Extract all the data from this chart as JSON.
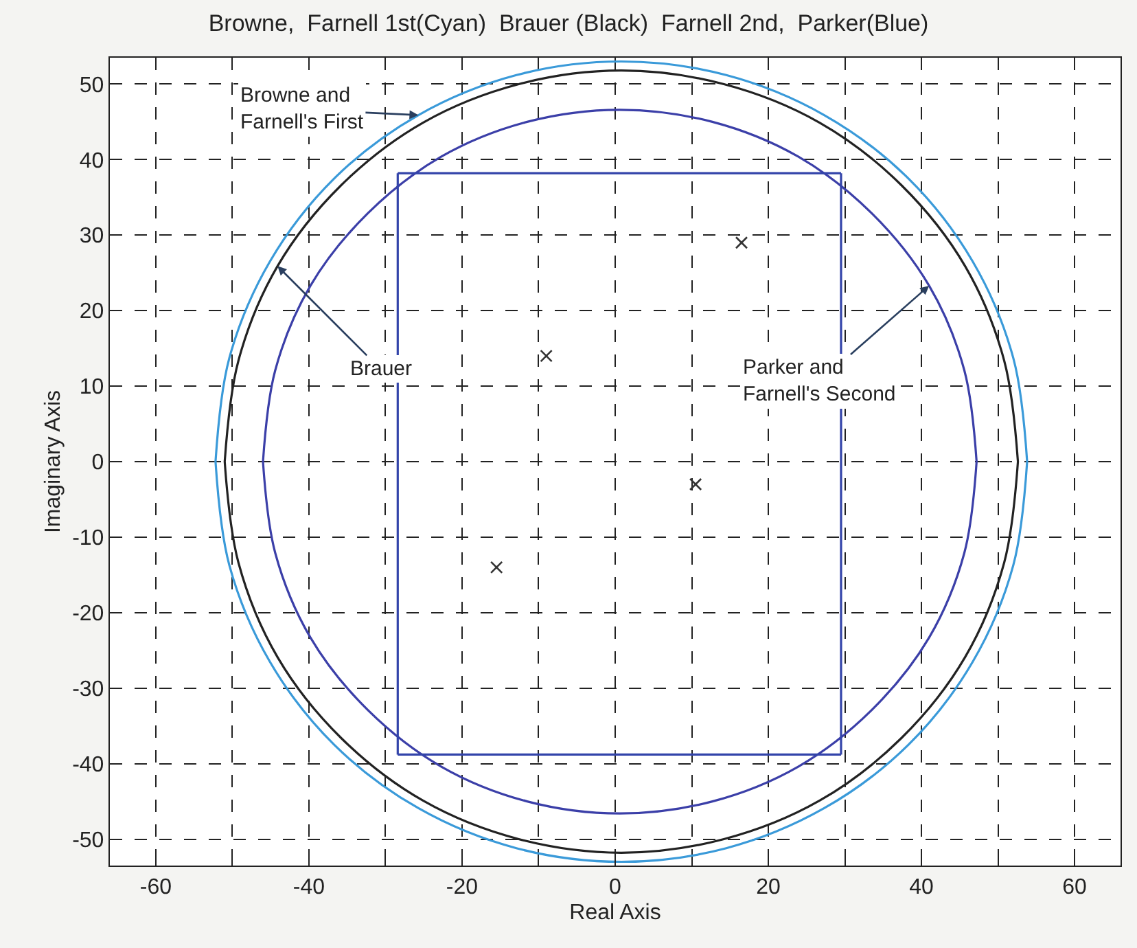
{
  "chart_data": {
    "type": "line",
    "title": "Browne,  Farnell 1st(Cyan)  Brauer (Black)  Farnell 2nd,  Parker(Blue)",
    "xlabel": "Real Axis",
    "ylabel": "Imaginary Axis",
    "xlim": [
      -66,
      66
    ],
    "ylim": [
      -53.5,
      53.5
    ],
    "xticks": [
      -60,
      {
        "value": -50,
        "label": null
      },
      -40,
      {
        "value": -30,
        "label": null
      },
      -20,
      {
        "value": -10,
        "label": null
      },
      0,
      {
        "value": 10,
        "label": null
      },
      20,
      {
        "value": 30,
        "label": null
      },
      40,
      {
        "value": 50,
        "label": null
      },
      60
    ],
    "yticks": [
      -50,
      -40,
      -30,
      -20,
      -10,
      0,
      10,
      20,
      30,
      40,
      50
    ],
    "grid": true,
    "line_style": "solid",
    "marker": "none",
    "series": [
      {
        "color": "#3a9ad9",
        "x": [
          -52.2,
          -50.4,
          -45.1,
          -36.7,
          -25.7,
          -12.9,
          0.8,
          14.5,
          27.3,
          38.3,
          46.7,
          52.0,
          53.8,
          null,
          -52.2,
          -50.4,
          -45.1,
          -36.7,
          -25.7,
          -12.9,
          0.8,
          14.5,
          27.3,
          38.3,
          46.7,
          52.0,
          53.8
        ],
        "values": [
          0,
          13.7,
          26.5,
          37.5,
          45.9,
          51.2,
          53,
          51.2,
          45.9,
          37.5,
          26.5,
          13.7,
          0,
          null,
          0,
          -13.7,
          -26.5,
          -37.5,
          -45.9,
          -51.2,
          -53,
          -51.2,
          -45.9,
          -37.5,
          -26.5,
          -13.7,
          0
        ]
      },
      {
        "color": "#222222",
        "x": [
          -51.0,
          -49.2,
          -44.1,
          -35.8,
          -25.1,
          -12.6,
          0.8,
          14.2,
          26.7,
          37.4,
          45.7,
          50.8,
          52.6,
          null,
          -51.0,
          -49.2,
          -44.1,
          -35.8,
          -25.1,
          -12.6,
          0.8,
          14.2,
          26.7,
          37.4,
          45.7,
          50.8,
          52.6
        ],
        "values": [
          0,
          13.4,
          25.9,
          36.6,
          44.9,
          50.0,
          51.8,
          50.0,
          44.9,
          36.6,
          25.9,
          13.4,
          0,
          null,
          0,
          -13.4,
          -25.9,
          -36.6,
          -44.9,
          -50.0,
          -51.8,
          -50.0,
          -44.9,
          -36.6,
          -25.9,
          -13.4,
          0
        ]
      },
      {
        "color": "#3b3fa8",
        "x": [
          -46.0,
          -44.4,
          -39.8,
          -32.3,
          -22.7,
          -11.5,
          0.6,
          12.7,
          23.9,
          33.5,
          41.0,
          45.6,
          47.2,
          null,
          -46.0,
          -44.4,
          -39.8,
          -32.3,
          -22.7,
          -11.5,
          0.6,
          12.7,
          23.9,
          33.5,
          41.0,
          45.6,
          47.2
        ],
        "values": [
          0,
          12.1,
          23.3,
          32.9,
          40.4,
          45.0,
          46.6,
          45.0,
          40.4,
          32.9,
          23.3,
          12.1,
          0,
          null,
          0,
          -12.1,
          -23.3,
          -32.9,
          -40.4,
          -45.0,
          -46.6,
          -45.0,
          -40.4,
          -32.9,
          -23.3,
          -12.1,
          0
        ]
      },
      {
        "color": "#3344aa",
        "x": [
          -28.4,
          29.5
        ],
        "values": [
          38.2,
          38.2
        ]
      },
      {
        "color": "#3344aa",
        "x": [
          -28.4,
          29.5
        ],
        "values": [
          -38.8,
          -38.8
        ]
      },
      {
        "color": "#3344aa",
        "x": [
          -28.4,
          -28.4
        ],
        "values": [
          38.2,
          -38.8
        ]
      },
      {
        "color": "#3344aa",
        "x": [
          29.5,
          29.5
        ],
        "values": [
          38.2,
          -38.8
        ]
      },
      {
        "type": "scatter",
        "marker": "cross",
        "color": "#333333",
        "x": [
          16.5,
          -9,
          10.5,
          -15.5
        ],
        "values": [
          29,
          14,
          -3,
          -14
        ]
      }
    ],
    "annotations": [
      {
        "text": "Browne and\nFarnell's First",
        "x": -25.7,
        "y": 45.9
      },
      {
        "text": "Brauer",
        "x": -44.1,
        "y": 25.9
      },
      {
        "text": "Parker and\nFarnell's Second",
        "x": 41.0,
        "y": 23.3
      }
    ]
  }
}
